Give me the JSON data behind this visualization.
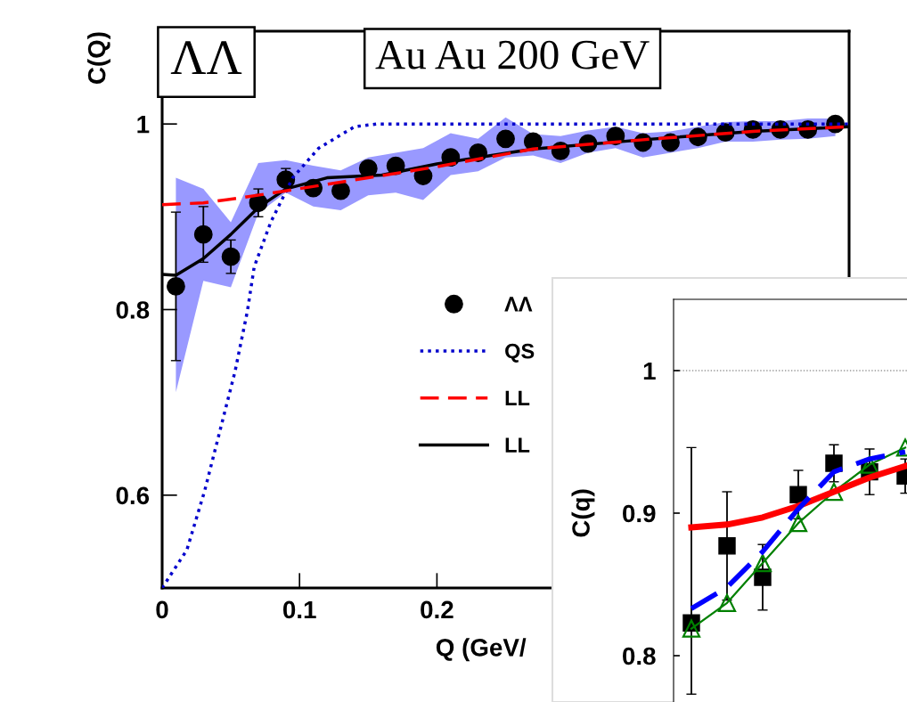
{
  "chart_data": [
    {
      "type": "line",
      "xlabel": "Q (GeV/",
      "ylabel": "C(Q)",
      "xlim": [
        0,
        0.5
      ],
      "ylim": [
        0.5,
        1.1
      ],
      "xticks": [
        0,
        0.1,
        0.2
      ],
      "yticks": [
        0.6,
        0.8,
        1
      ],
      "legend": "right",
      "grid": false,
      "annotations": [
        "ΛΛ",
        "Au Au 200 GeV"
      ],
      "series": [
        {
          "name": "ΛΛ",
          "type": "scatter",
          "marker": "circle",
          "color": "#000000",
          "x": [
            0.01,
            0.03,
            0.05,
            0.07,
            0.09,
            0.11,
            0.13,
            0.15,
            0.17,
            0.19,
            0.21,
            0.23,
            0.25,
            0.27,
            0.29,
            0.31,
            0.33,
            0.35,
            0.37,
            0.39,
            0.41,
            0.43,
            0.45,
            0.47,
            0.49
          ],
          "values": [
            0.825,
            0.881,
            0.857,
            0.915,
            0.94,
            0.931,
            0.928,
            0.952,
            0.955,
            0.944,
            0.964,
            0.969,
            0.984,
            0.981,
            0.971,
            0.979,
            0.987,
            0.98,
            0.98,
            0.986,
            0.991,
            0.994,
            0.994,
            0.994,
            1.0
          ],
          "errors": [
            0.08,
            0.03,
            0.018,
            0.015,
            0.012,
            null,
            null,
            null,
            null,
            null,
            null,
            null,
            null,
            null,
            null,
            null,
            null,
            null,
            null,
            null,
            null,
            null,
            null,
            null,
            null
          ],
          "lower": [
            0.711,
            0.831,
            0.824,
            0.904,
            0.926,
            0.911,
            0.907,
            0.923,
            0.926,
            0.918,
            0.945,
            0.949,
            0.964,
            0.966,
            0.958,
            0.969,
            0.974,
            0.964,
            0.969,
            0.974,
            0.981,
            0.981,
            0.983,
            0.984,
            0.987
          ],
          "upper": [
            0.942,
            0.93,
            0.894,
            0.958,
            0.961,
            0.955,
            0.95,
            0.964,
            0.969,
            0.974,
            0.99,
            0.984,
            1.007,
            0.989,
            0.987,
            0.993,
            0.997,
            0.99,
            0.992,
            0.997,
            1.002,
            1.003,
            1.003,
            1.006,
            1.006
          ]
        },
        {
          "name": "QS",
          "type": "line",
          "line_style": "dotted",
          "color": "#0000cc",
          "x": [
            0,
            0.018,
            0.031,
            0.042,
            0.053,
            0.062,
            0.067,
            0.079,
            0.095,
            0.114,
            0.14,
            0.156,
            0.5
          ],
          "values": [
            0.5,
            0.541,
            0.605,
            0.669,
            0.733,
            0.798,
            0.846,
            0.894,
            0.942,
            0.974,
            0.997,
            1.0,
            1.0
          ]
        },
        {
          "name": "LL",
          "type": "line",
          "line_style": "dashed",
          "color": "#ff0000",
          "x": [
            0,
            0.03,
            0.06,
            0.09,
            0.15,
            0.2,
            0.27,
            0.35,
            0.43,
            0.5
          ],
          "values": [
            0.913,
            0.915,
            0.921,
            0.928,
            0.942,
            0.954,
            0.973,
            0.983,
            0.992,
            0.997
          ]
        },
        {
          "name": "LL",
          "type": "line",
          "line_style": "solid",
          "color": "#000000",
          "x": [
            0,
            0.01,
            0.03,
            0.05,
            0.07,
            0.09,
            0.12,
            0.16,
            0.2,
            0.27,
            0.35,
            0.43,
            0.5
          ],
          "values": [
            0.838,
            0.837,
            0.855,
            0.881,
            0.91,
            0.93,
            0.942,
            0.945,
            0.957,
            0.973,
            0.983,
            0.992,
            0.997
          ]
        }
      ]
    },
    {
      "type": "line",
      "ylabel": "C(q)",
      "ylim": [
        0.75,
        1.05
      ],
      "yticks": [
        0.8,
        0.9,
        1
      ],
      "tick_labels": "y",
      "grid": false,
      "categories": [
        null,
        null,
        null,
        null,
        null,
        null,
        null
      ],
      "ref_lines": [
        {
          "axis": "y",
          "value": 1,
          "color": "#999999",
          "line_style": "dotted"
        }
      ],
      "series": [
        {
          "type": "line",
          "line_style": "solid",
          "color": "#ff0000",
          "values": [
            0.89,
            0.892,
            0.897,
            0.905,
            0.915,
            0.925,
            0.933
          ]
        },
        {
          "type": "line",
          "line_style": "dashed",
          "color": "#0000ff",
          "values": [
            0.833,
            0.848,
            0.873,
            0.903,
            0.929,
            0.938,
            0.943
          ]
        },
        {
          "type": "line",
          "line_style": "solid",
          "marker": "triangle",
          "color": "#008000",
          "values": [
            0.819,
            0.837,
            0.865,
            0.893,
            0.915,
            0.934,
            0.946
          ]
        },
        {
          "type": "scatter",
          "marker": "square",
          "color": "#000000",
          "values": [
            0.823,
            0.877,
            0.855,
            0.913,
            0.935,
            0.929,
            0.926
          ],
          "errors": [
            [
              0.773,
              0.946
            ],
            0.038,
            0.023,
            0.017,
            0.013,
            0.016,
            0.012
          ]
        }
      ]
    }
  ]
}
